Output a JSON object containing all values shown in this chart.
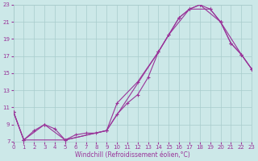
{
  "bg_color": "#cce8e8",
  "grid_color": "#a8cccc",
  "line_color": "#993399",
  "xlabel": "Windchill (Refroidissement éolien,°C)",
  "xlim": [
    0,
    23
  ],
  "ylim": [
    7,
    23
  ],
  "yticks": [
    7,
    9,
    11,
    13,
    15,
    17,
    19,
    21,
    23
  ],
  "xticks": [
    0,
    1,
    2,
    3,
    4,
    5,
    6,
    7,
    8,
    9,
    10,
    11,
    12,
    13,
    14,
    15,
    16,
    17,
    18,
    19,
    20,
    21,
    22,
    23
  ],
  "line1_x": [
    0,
    1,
    2,
    3,
    4,
    5,
    6,
    7,
    8,
    9,
    10,
    11,
    12,
    13,
    14,
    15,
    16,
    17,
    18,
    19,
    20,
    21,
    22,
    23
  ],
  "line1_y": [
    10.5,
    7.2,
    8.3,
    9.0,
    8.5,
    7.2,
    7.8,
    8.0,
    8.0,
    8.3,
    10.2,
    11.5,
    12.5,
    14.5,
    17.5,
    19.5,
    21.5,
    22.5,
    23.0,
    22.5,
    21.0,
    18.5,
    17.2,
    15.5
  ],
  "line2_x": [
    0,
    1,
    3,
    5,
    9,
    10,
    12,
    14,
    15,
    17,
    18,
    20,
    22,
    23
  ],
  "line2_y": [
    10.5,
    7.2,
    9.0,
    7.2,
    8.3,
    11.5,
    14.0,
    17.5,
    19.5,
    22.5,
    23.0,
    21.0,
    17.2,
    15.5
  ],
  "line3_x": [
    0,
    1,
    5,
    9,
    14,
    16,
    17,
    19,
    20,
    21,
    22,
    23
  ],
  "line3_y": [
    10.5,
    7.2,
    7.2,
    8.3,
    17.5,
    21.5,
    22.5,
    22.5,
    21.0,
    18.5,
    17.2,
    15.5
  ]
}
